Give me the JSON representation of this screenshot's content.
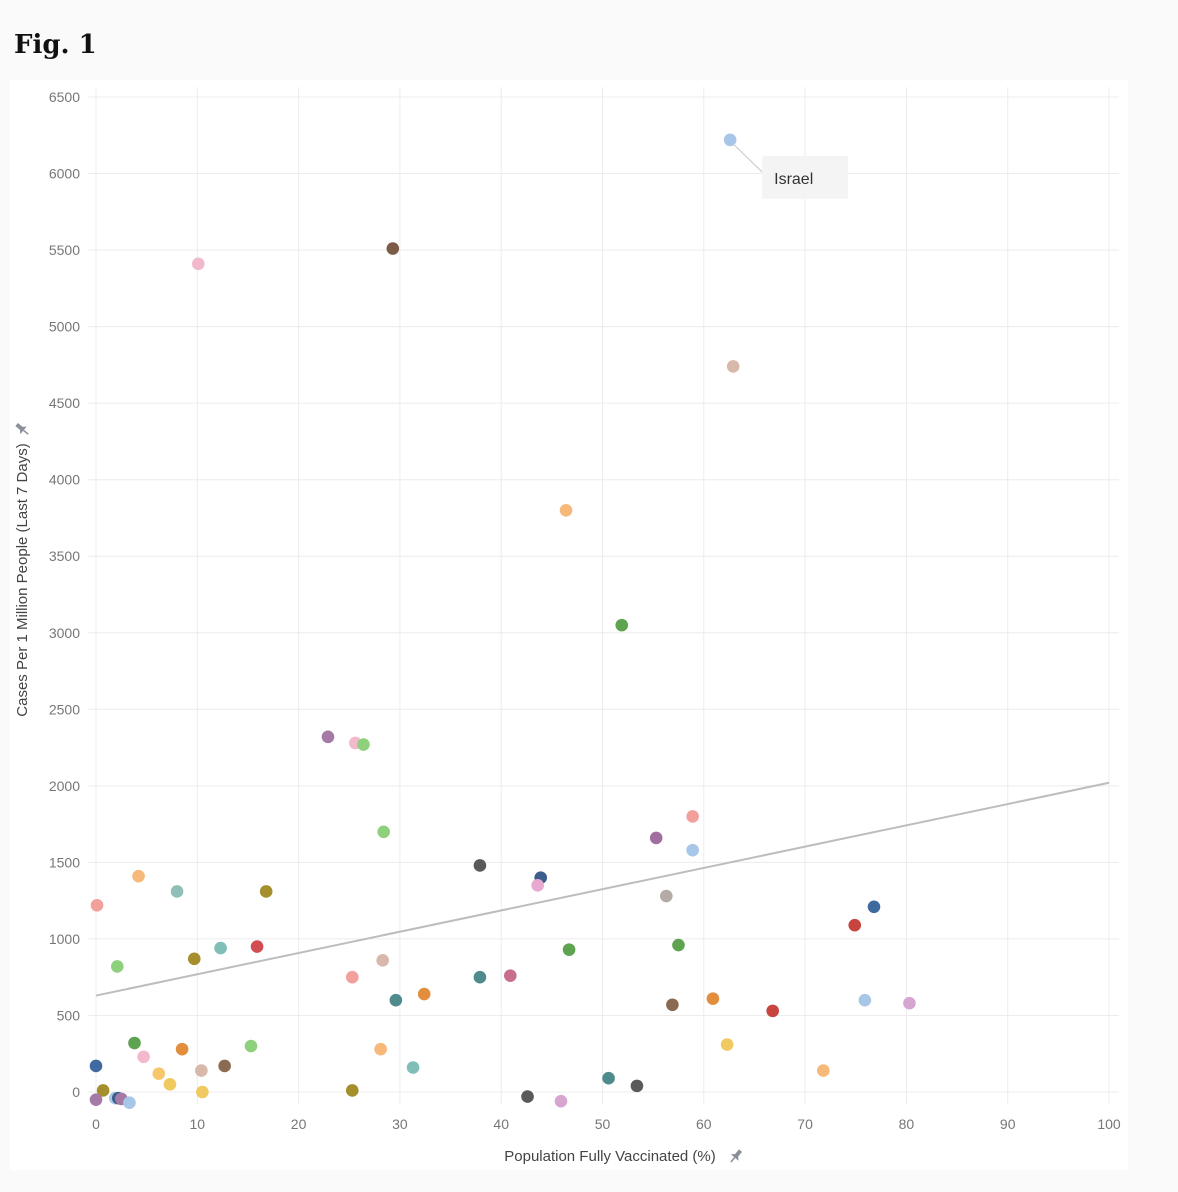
{
  "figure": {
    "title": "Fig. 1"
  },
  "chart_data": {
    "type": "scatter",
    "title": "",
    "xlabel": "Population Fully Vaccinated (%)",
    "ylabel": "Cases Per 1 Million People (Last 7 Days)",
    "xlim": [
      0,
      100
    ],
    "ylim": [
      0,
      6500
    ],
    "xticks": [
      0,
      10,
      20,
      30,
      40,
      50,
      60,
      70,
      80,
      90,
      100
    ],
    "yticks": [
      0,
      500,
      1000,
      1500,
      2000,
      2500,
      3000,
      3500,
      4000,
      4500,
      5000,
      5500,
      6000,
      6500
    ],
    "grid": true,
    "pin_icon": "pin-icon",
    "trendline": {
      "x": [
        0,
        100
      ],
      "y": [
        630,
        2020
      ],
      "color": "#bdbdbd"
    },
    "annotations": [
      {
        "text": "Israel",
        "x": 62.6,
        "y": 6220
      }
    ],
    "points": [
      {
        "x": 62.6,
        "y": 6220,
        "color": "#a7c6e8"
      },
      {
        "x": 29.3,
        "y": 5510,
        "color": "#7b5c47"
      },
      {
        "x": 10.1,
        "y": 5410,
        "color": "#f1b9cb"
      },
      {
        "x": 62.9,
        "y": 4740,
        "color": "#d8b8aa"
      },
      {
        "x": 46.4,
        "y": 3800,
        "color": "#f6b97a"
      },
      {
        "x": 51.9,
        "y": 3050,
        "color": "#5ea34f"
      },
      {
        "x": 22.9,
        "y": 2320,
        "color": "#a57aa6"
      },
      {
        "x": 25.6,
        "y": 2280,
        "color": "#f1b9cb"
      },
      {
        "x": 26.4,
        "y": 2270,
        "color": "#8fd07d"
      },
      {
        "x": 28.4,
        "y": 1700,
        "color": "#8fd07d"
      },
      {
        "x": 58.9,
        "y": 1800,
        "color": "#f1a09c"
      },
      {
        "x": 55.3,
        "y": 1660,
        "color": "#a06f9f"
      },
      {
        "x": 58.9,
        "y": 1580,
        "color": "#a7c6e8"
      },
      {
        "x": 37.9,
        "y": 1480,
        "color": "#5a5a5a"
      },
      {
        "x": 4.2,
        "y": 1410,
        "color": "#f6b97a"
      },
      {
        "x": 43.9,
        "y": 1400,
        "color": "#3c5e8c"
      },
      {
        "x": 43.6,
        "y": 1350,
        "color": "#e7a9ce"
      },
      {
        "x": 8.0,
        "y": 1310,
        "color": "#8fbfb7"
      },
      {
        "x": 16.8,
        "y": 1310,
        "color": "#a58f2d"
      },
      {
        "x": 56.3,
        "y": 1280,
        "color": "#b5aaa6"
      },
      {
        "x": 0.1,
        "y": 1220,
        "color": "#f1a09c"
      },
      {
        "x": 76.8,
        "y": 1210,
        "color": "#3f6aa0"
      },
      {
        "x": 74.9,
        "y": 1090,
        "color": "#c8443f"
      },
      {
        "x": 57.5,
        "y": 960,
        "color": "#5ea34f"
      },
      {
        "x": 46.7,
        "y": 930,
        "color": "#5ea34f"
      },
      {
        "x": 15.9,
        "y": 950,
        "color": "#d14d52"
      },
      {
        "x": 12.3,
        "y": 940,
        "color": "#80bfb8"
      },
      {
        "x": 9.7,
        "y": 870,
        "color": "#a58f2d"
      },
      {
        "x": 28.3,
        "y": 860,
        "color": "#d8b8aa"
      },
      {
        "x": 2.1,
        "y": 820,
        "color": "#8fd07d"
      },
      {
        "x": 25.3,
        "y": 750,
        "color": "#f1a09c"
      },
      {
        "x": 37.9,
        "y": 750,
        "color": "#4f8a8c"
      },
      {
        "x": 40.9,
        "y": 760,
        "color": "#c86e8e"
      },
      {
        "x": 32.4,
        "y": 640,
        "color": "#e38e3c"
      },
      {
        "x": 29.6,
        "y": 600,
        "color": "#4f8a8c"
      },
      {
        "x": 60.9,
        "y": 610,
        "color": "#e38e3c"
      },
      {
        "x": 56.9,
        "y": 570,
        "color": "#8a6b52"
      },
      {
        "x": 66.8,
        "y": 530,
        "color": "#c8443f"
      },
      {
        "x": 75.9,
        "y": 600,
        "color": "#a7c6e8"
      },
      {
        "x": 80.3,
        "y": 580,
        "color": "#d6a6d0"
      },
      {
        "x": 62.3,
        "y": 310,
        "color": "#f0c960"
      },
      {
        "x": 3.8,
        "y": 320,
        "color": "#5ea34f"
      },
      {
        "x": 8.5,
        "y": 280,
        "color": "#e38e3c"
      },
      {
        "x": 15.3,
        "y": 300,
        "color": "#8fd07d"
      },
      {
        "x": 28.1,
        "y": 280,
        "color": "#f6b97a"
      },
      {
        "x": 4.7,
        "y": 230,
        "color": "#f1b9cb"
      },
      {
        "x": 0.0,
        "y": 170,
        "color": "#3f6aa0"
      },
      {
        "x": 12.7,
        "y": 170,
        "color": "#8a6b52"
      },
      {
        "x": 10.4,
        "y": 140,
        "color": "#d8b8aa"
      },
      {
        "x": 31.3,
        "y": 160,
        "color": "#80bfb8"
      },
      {
        "x": 6.2,
        "y": 120,
        "color": "#f6c76b"
      },
      {
        "x": 7.3,
        "y": 50,
        "color": "#f0c960"
      },
      {
        "x": 71.8,
        "y": 140,
        "color": "#f6b97a"
      },
      {
        "x": 50.6,
        "y": 90,
        "color": "#4f8a8c"
      },
      {
        "x": 53.4,
        "y": 40,
        "color": "#5a5a5a"
      },
      {
        "x": 0.7,
        "y": 10,
        "color": "#a58f2d"
      },
      {
        "x": 10.5,
        "y": 0,
        "color": "#f0c960"
      },
      {
        "x": 25.3,
        "y": 10,
        "color": "#a58f2d"
      },
      {
        "x": 42.6,
        "y": -30,
        "color": "#5a5a5a"
      },
      {
        "x": 45.9,
        "y": -60,
        "color": "#d6a6d0"
      },
      {
        "x": 0.0,
        "y": -50,
        "color": "#a57aa6"
      },
      {
        "x": 1.9,
        "y": -40,
        "color": "#a7c6e8"
      },
      {
        "x": 2.2,
        "y": -40,
        "color": "#3c5e8c"
      },
      {
        "x": 2.5,
        "y": -45,
        "color": "#a57aa6"
      },
      {
        "x": 3.3,
        "y": -70,
        "color": "#a7c6e8"
      }
    ]
  }
}
